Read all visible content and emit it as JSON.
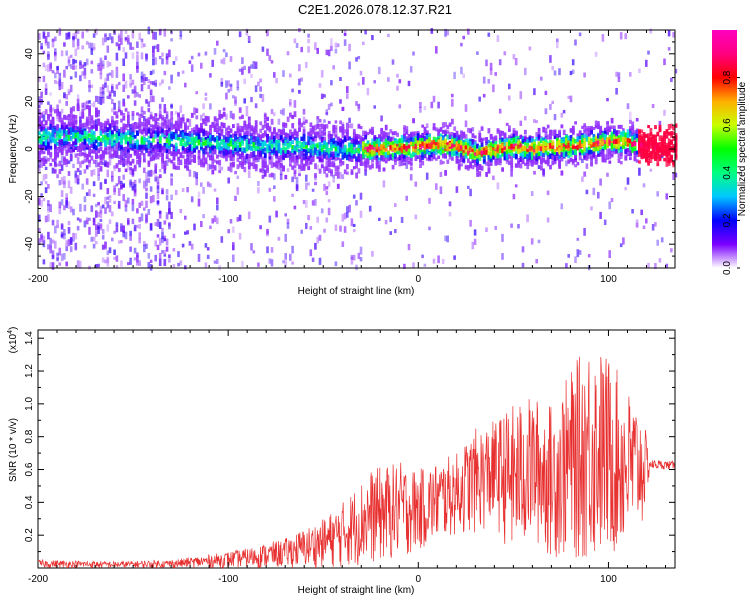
{
  "title": "C2E1.2026.078.12.37.R21",
  "chart_data": [
    {
      "type": "heatmap",
      "xlabel": "Height of straight line (km)",
      "ylabel": "Frequency (Hz)",
      "xlim": [
        -200,
        135
      ],
      "ylim": [
        -50,
        50
      ],
      "xticks": [
        -200,
        -100,
        0,
        100
      ],
      "xtick_labels": [
        "-200",
        "-100",
        "0",
        "100"
      ],
      "yticks": [
        -40,
        -20,
        0,
        20,
        40
      ],
      "ytick_labels": [
        "-40",
        "-20",
        "0",
        "20",
        "40"
      ],
      "colorbar": {
        "label": "Normalized spectral amplitude",
        "range": [
          0.0,
          1.0
        ],
        "ticks": [
          0.0,
          0.2,
          0.4,
          0.6,
          0.8
        ],
        "tick_labels": [
          "0.0",
          "0.2",
          "0.4",
          "0.6",
          "0.8"
        ],
        "colormap": [
          "#ffffff",
          "#7a00ff",
          "#0000ff",
          "#00c8ff",
          "#00ff80",
          "#00ff00",
          "#c8ff00",
          "#ffb000",
          "#ff0000",
          "#ff0080",
          "#ff00c0"
        ]
      },
      "ridge_center_hz": [
        {
          "x": -200,
          "y": 5
        },
        {
          "x": -180,
          "y": 5
        },
        {
          "x": -150,
          "y": 4
        },
        {
          "x": -120,
          "y": 3
        },
        {
          "x": -100,
          "y": 2
        },
        {
          "x": -80,
          "y": 1
        },
        {
          "x": -60,
          "y": 1
        },
        {
          "x": -40,
          "y": 0
        },
        {
          "x": -20,
          "y": 0
        },
        {
          "x": 0,
          "y": 1
        },
        {
          "x": 10,
          "y": 2
        },
        {
          "x": 20,
          "y": 1
        },
        {
          "x": 30,
          "y": -2
        },
        {
          "x": 40,
          "y": 0
        },
        {
          "x": 50,
          "y": 1
        },
        {
          "x": 60,
          "y": 0
        },
        {
          "x": 70,
          "y": 1
        },
        {
          "x": 80,
          "y": 1
        },
        {
          "x": 90,
          "y": 2
        },
        {
          "x": 100,
          "y": 3
        },
        {
          "x": 110,
          "y": 3
        },
        {
          "x": 120,
          "y": 1
        },
        {
          "x": 135,
          "y": 1
        }
      ]
    },
    {
      "type": "line",
      "xlabel": "Height of straight line (km)",
      "ylabel": "SNR (10 * v/v)",
      "y_multiplier": "(x10",
      "y_multiplier_exp": "4",
      "y_multiplier_close": ")",
      "xlim": [
        -200,
        135
      ],
      "ylim": [
        0.0,
        1.45
      ],
      "xticks": [
        -200,
        -100,
        0,
        100
      ],
      "xtick_labels": [
        "-200",
        "-100",
        "0",
        "100"
      ],
      "yticks": [
        0.2,
        0.4,
        0.6,
        0.8,
        1.0,
        1.2,
        1.4
      ],
      "ytick_labels": [
        "0.2",
        "0.4",
        "0.6",
        "0.8",
        "1.0",
        "1.2",
        "1.4"
      ],
      "color": "#e83030",
      "series": [
        {
          "name": "SNR",
          "envelope": [
            {
              "x": -200,
              "lo": 0.0,
              "hi": 0.05
            },
            {
              "x": -160,
              "lo": 0.0,
              "hi": 0.04
            },
            {
              "x": -130,
              "lo": 0.0,
              "hi": 0.05
            },
            {
              "x": -110,
              "lo": 0.0,
              "hi": 0.08
            },
            {
              "x": -90,
              "lo": 0.0,
              "hi": 0.12
            },
            {
              "x": -70,
              "lo": 0.0,
              "hi": 0.18
            },
            {
              "x": -50,
              "lo": 0.0,
              "hi": 0.3
            },
            {
              "x": -40,
              "lo": 0.0,
              "hi": 0.4
            },
            {
              "x": -25,
              "lo": 0.02,
              "hi": 0.6
            },
            {
              "x": -10,
              "lo": 0.05,
              "hi": 0.65
            },
            {
              "x": 0,
              "lo": 0.1,
              "hi": 0.6
            },
            {
              "x": 10,
              "lo": 0.15,
              "hi": 0.65
            },
            {
              "x": 20,
              "lo": 0.2,
              "hi": 0.7
            },
            {
              "x": 30,
              "lo": 0.2,
              "hi": 0.85
            },
            {
              "x": 40,
              "lo": 0.25,
              "hi": 0.9
            },
            {
              "x": 50,
              "lo": 0.05,
              "hi": 1.0
            },
            {
              "x": 60,
              "lo": 0.15,
              "hi": 1.05
            },
            {
              "x": 70,
              "lo": 0.05,
              "hi": 1.0
            },
            {
              "x": 80,
              "lo": 0.05,
              "hi": 1.2
            },
            {
              "x": 90,
              "lo": 0.02,
              "hi": 1.4
            },
            {
              "x": 100,
              "lo": 0.05,
              "hi": 1.3
            },
            {
              "x": 110,
              "lo": 0.1,
              "hi": 1.1
            },
            {
              "x": 118,
              "lo": 0.25,
              "hi": 0.95
            },
            {
              "x": 122,
              "lo": 0.6,
              "hi": 0.66
            },
            {
              "x": 135,
              "lo": 0.6,
              "hi": 0.65
            }
          ]
        }
      ]
    }
  ]
}
